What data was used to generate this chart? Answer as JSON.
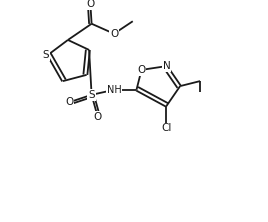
{
  "bg_color": "#ffffff",
  "line_color": "#1a1a1a",
  "line_width": 1.3,
  "font_size": 7.5,
  "fig_width": 2.68,
  "fig_height": 2.22,
  "dpi": 100,
  "xlim": [
    0,
    10
  ],
  "ylim": [
    0,
    8.5
  ]
}
